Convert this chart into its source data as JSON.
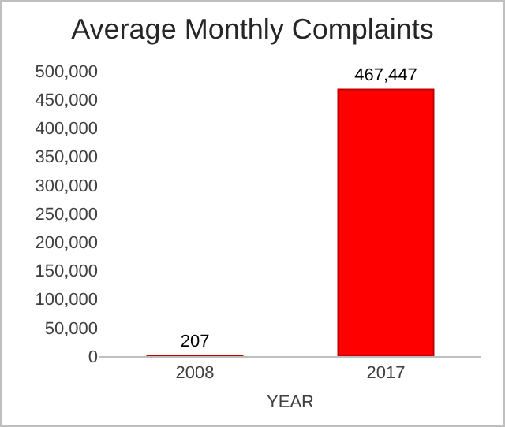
{
  "chart_data": {
    "type": "bar",
    "title": "Average Monthly Complaints",
    "xlabel": "YEAR",
    "categories": [
      "2008",
      "2017"
    ],
    "values": [
      207,
      467447
    ],
    "value_labels": [
      "207",
      "467,447"
    ],
    "color": "#ff0000",
    "ylim": [
      0,
      500000
    ],
    "yticks": [
      0,
      {
        "value": 50000,
        "label": "50,000"
      },
      {
        "value": 100000,
        "label": "100,000"
      },
      {
        "value": 150000,
        "label": "150,000"
      },
      {
        "value": 200000,
        "label": "200,000"
      },
      {
        "value": 250000,
        "label": "250,000"
      },
      {
        "value": 300000,
        "label": "300,000"
      },
      {
        "value": 350000,
        "label": "350,000"
      },
      {
        "value": 400000,
        "label": "400,000"
      },
      {
        "value": 450000,
        "label": "450,000"
      },
      {
        "value": 500000,
        "label": "500,000"
      }
    ],
    "grid": false
  }
}
